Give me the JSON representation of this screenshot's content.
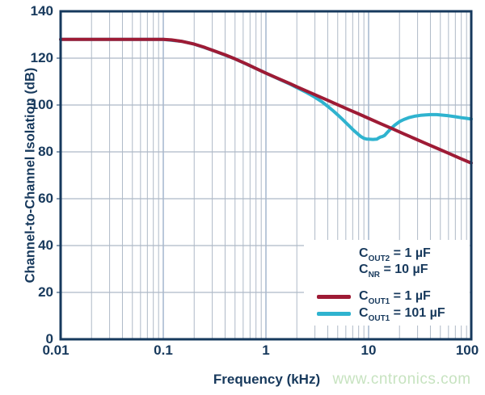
{
  "page": {
    "background": "#ffffff"
  },
  "watermark": {
    "text": "www.cntronics.com",
    "color": "#c7e3c0"
  },
  "chart_data": {
    "type": "line",
    "title": "",
    "xlabel": "Frequency (kHz)",
    "ylabel": "Channel-to-Channel Isolation (dB)",
    "x_scale": "log",
    "xlim": [
      0.01,
      100
    ],
    "ylim": [
      0,
      140
    ],
    "grid": "on (log minor vertical lines, 20 dB horizontal lines)",
    "legend_position": "lower right",
    "x_ticks": {
      "values": [
        0.01,
        0.1,
        1,
        10,
        100
      ],
      "labels": [
        "0.01",
        "0.1",
        "1",
        "10",
        "100"
      ]
    },
    "y_ticks": {
      "values": [
        0,
        20,
        40,
        60,
        80,
        100,
        120,
        140
      ],
      "labels": [
        "0",
        "20",
        "40",
        "60",
        "80",
        "100",
        "120",
        "140"
      ]
    },
    "colors": {
      "axis_frame": "#16395d",
      "text": "#17395c",
      "grid_minor": "#aeb9c7",
      "grid_decade": "#9db1cb",
      "series_red": "#9e1b35",
      "series_cyan": "#2fb3cf"
    },
    "annotations": [
      {
        "prefix": "C",
        "sub": "OUT2",
        "rest": " = 1 µF"
      },
      {
        "prefix": "C",
        "sub": "NR",
        "rest": " = 10 µF"
      }
    ],
    "legend": [
      {
        "prefix": "C",
        "sub": "OUT1",
        "rest": " = 1 µF",
        "color": "#9e1b35"
      },
      {
        "prefix": "C",
        "sub": "OUT1",
        "rest": " = 101 µF",
        "color": "#2fb3cf"
      }
    ],
    "series": [
      {
        "name": "COUT1 = 1 µF",
        "color": "#9e1b35",
        "points": [
          [
            0.01,
            128
          ],
          [
            0.03,
            128
          ],
          [
            0.06,
            128
          ],
          [
            0.1,
            128
          ],
          [
            0.12,
            127.8
          ],
          [
            0.15,
            127.2
          ],
          [
            0.2,
            126.0
          ],
          [
            0.25,
            124.7
          ],
          [
            0.3,
            123.4
          ],
          [
            0.4,
            121.4
          ],
          [
            0.5,
            119.7
          ],
          [
            0.65,
            117.5
          ],
          [
            0.8,
            115.6
          ],
          [
            1,
            113.6
          ],
          [
            1.3,
            111.4
          ],
          [
            1.7,
            109.2
          ],
          [
            2,
            107.8
          ],
          [
            2.6,
            105.6
          ],
          [
            3.3,
            103.6
          ],
          [
            4,
            102.0
          ],
          [
            5,
            100.1
          ],
          [
            6.5,
            97.9
          ],
          [
            8,
            96.2
          ],
          [
            10,
            94.3
          ],
          [
            13,
            92.1
          ],
          [
            17,
            89.9
          ],
          [
            22,
            87.7
          ],
          [
            28,
            85.7
          ],
          [
            36,
            83.6
          ],
          [
            46,
            81.6
          ],
          [
            60,
            79.4
          ],
          [
            78,
            77.2
          ],
          [
            100,
            75.2
          ]
        ]
      },
      {
        "name": "COUT1 = 101 µF",
        "color": "#2fb3cf",
        "points": [
          [
            0.01,
            128
          ],
          [
            0.05,
            128
          ],
          [
            0.1,
            128
          ],
          [
            0.15,
            127.2
          ],
          [
            0.2,
            126.0
          ],
          [
            0.3,
            123.4
          ],
          [
            0.5,
            119.7
          ],
          [
            0.8,
            115.6
          ],
          [
            1,
            113.6
          ],
          [
            1.3,
            111.3
          ],
          [
            1.7,
            109.0
          ],
          [
            2,
            107.4
          ],
          [
            2.5,
            105.3
          ],
          [
            3,
            103.3
          ],
          [
            3.5,
            101.4
          ],
          [
            4,
            99.4
          ],
          [
            4.5,
            97.6
          ],
          [
            5,
            95.8
          ],
          [
            5.5,
            94.1
          ],
          [
            6,
            92.5
          ],
          [
            6.5,
            91.0
          ],
          [
            7,
            89.6
          ],
          [
            7.5,
            88.4
          ],
          [
            8,
            87.3
          ],
          [
            8.5,
            86.4
          ],
          [
            9,
            85.8
          ],
          [
            9.5,
            85.5
          ],
          [
            10,
            85.4
          ],
          [
            11,
            85.3
          ],
          [
            12,
            85.4
          ],
          [
            12.5,
            85.9
          ],
          [
            13,
            86.3
          ],
          [
            13.7,
            86.6
          ],
          [
            14.3,
            87.0
          ],
          [
            15,
            88.0
          ],
          [
            16,
            89.3
          ],
          [
            17,
            90.5
          ],
          [
            18,
            91.4
          ],
          [
            20,
            92.9
          ],
          [
            22,
            93.8
          ],
          [
            25,
            94.7
          ],
          [
            28,
            95.2
          ],
          [
            32,
            95.6
          ],
          [
            36,
            95.8
          ],
          [
            40,
            95.9
          ],
          [
            46,
            95.9
          ],
          [
            52,
            95.7
          ],
          [
            60,
            95.4
          ],
          [
            70,
            95.0
          ],
          [
            80,
            94.6
          ],
          [
            90,
            94.3
          ],
          [
            100,
            94.0
          ]
        ]
      }
    ]
  }
}
